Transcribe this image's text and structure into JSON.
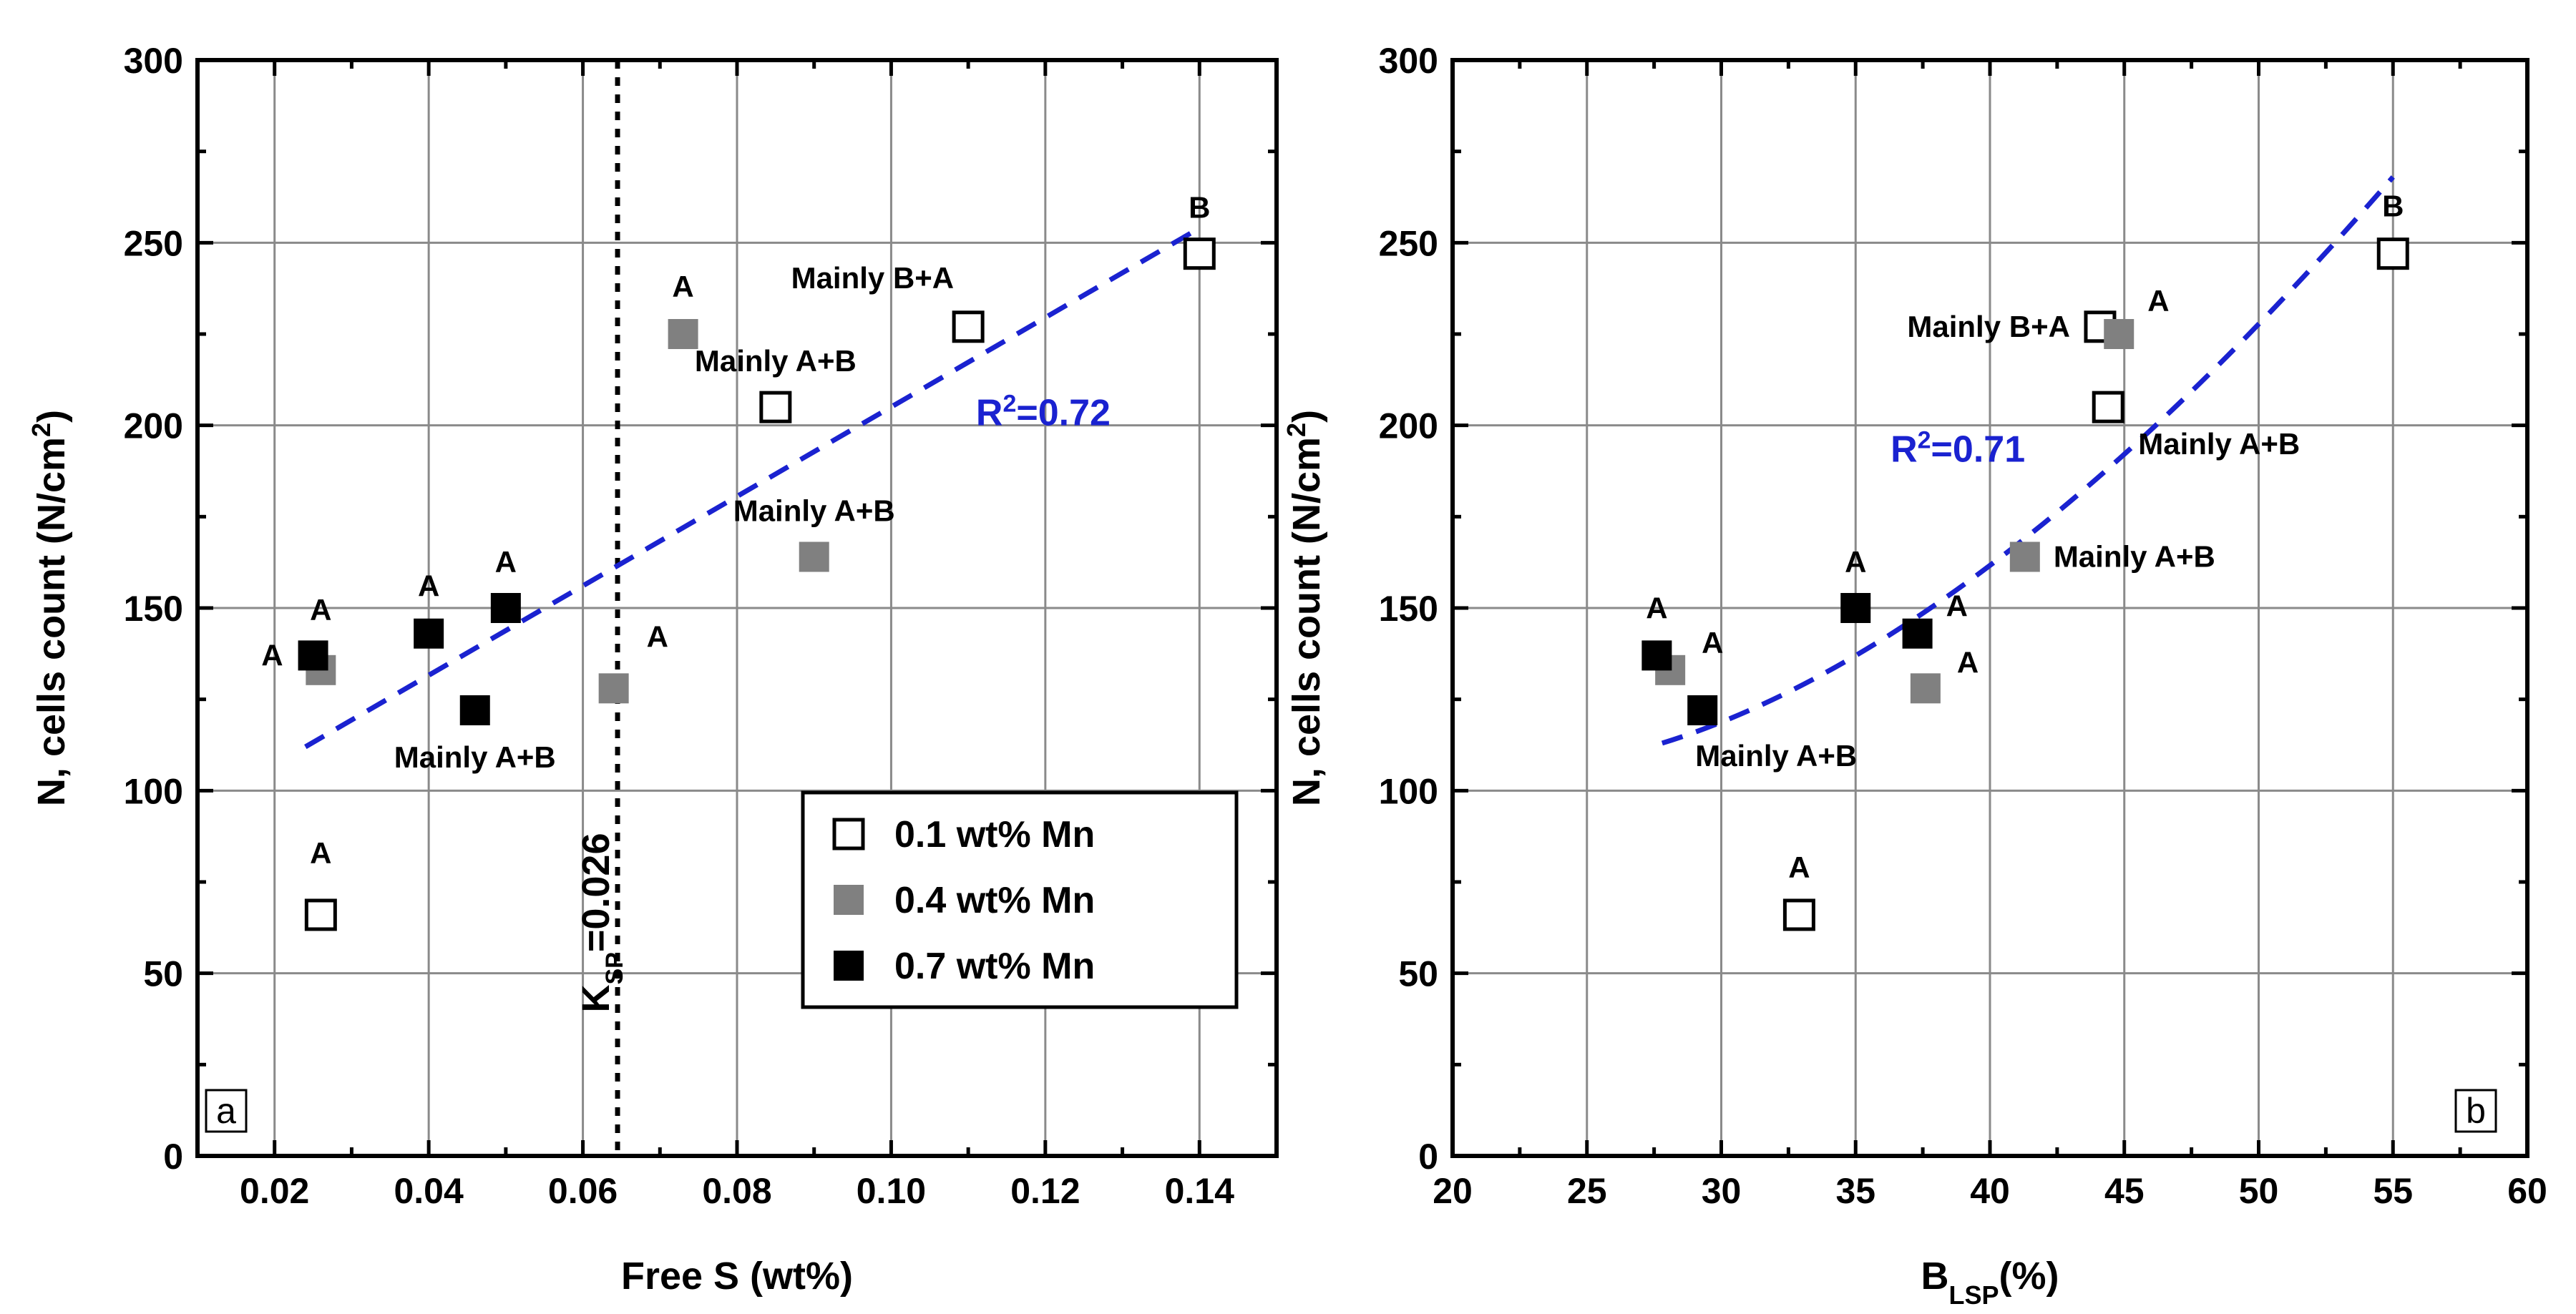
{
  "colors": {
    "open": "#ffffff",
    "gray": "#808080",
    "black": "#000000",
    "fit": "#1a22d0"
  },
  "legend": {
    "items": [
      {
        "label": "0.1 wt% Mn",
        "style": "open"
      },
      {
        "label": "0.4 wt% Mn",
        "style": "gray"
      },
      {
        "label": "0.7 wt% Mn",
        "style": "black"
      }
    ]
  },
  "chart_data": [
    {
      "type": "scatter",
      "panel": "a",
      "xlabel": "Free S (wt%)",
      "ylabel": "N, cells count (N/cm²)",
      "xlim": [
        0.01,
        0.15
      ],
      "ylim": [
        0,
        300
      ],
      "xticks": [
        0.02,
        0.04,
        0.06,
        0.08,
        0.1,
        0.12,
        0.14
      ],
      "xtick_labels": [
        "0.02",
        "0.04",
        "0.06",
        "0.08",
        "0.10",
        "0.12",
        "0.14"
      ],
      "yticks": [
        0,
        50,
        100,
        150,
        200,
        250,
        300
      ],
      "ytick_labels": [
        "0",
        "50",
        "100",
        "150",
        "200",
        "250",
        "300"
      ],
      "series": [
        {
          "name": "0.1 wt% Mn",
          "style": "open",
          "points": [
            {
              "x": 0.026,
              "y": 66,
              "label": "A"
            },
            {
              "x": 0.085,
              "y": 205,
              "label": "Mainly A+B"
            },
            {
              "x": 0.11,
              "y": 227,
              "label": "Mainly B+A"
            },
            {
              "x": 0.14,
              "y": 247,
              "label": "B"
            }
          ]
        },
        {
          "name": "0.4 wt% Mn",
          "style": "gray",
          "points": [
            {
              "x": 0.026,
              "y": 133,
              "label": "A"
            },
            {
              "x": 0.064,
              "y": 128,
              "label": "A"
            },
            {
              "x": 0.073,
              "y": 225,
              "label": "A"
            },
            {
              "x": 0.09,
              "y": 164,
              "label": "Mainly A+B"
            }
          ]
        },
        {
          "name": "0.7 wt% Mn",
          "style": "black",
          "points": [
            {
              "x": 0.025,
              "y": 137,
              "label": "A"
            },
            {
              "x": 0.04,
              "y": 143,
              "label": "A"
            },
            {
              "x": 0.046,
              "y": 122,
              "label": "Mainly A+B"
            },
            {
              "x": 0.05,
              "y": 150,
              "label": "A"
            }
          ]
        }
      ],
      "fit": {
        "type": "linear",
        "from": [
          0.024,
          112
        ],
        "to": [
          0.14,
          254
        ],
        "r2_label": "R²=0.72",
        "r2_anchor": [
          0.111,
          200
        ]
      },
      "vline": {
        "x": 0.0645,
        "label_main": "K",
        "label_sub": "SP",
        "label_value": "=0.026"
      },
      "panel_tag": "a"
    },
    {
      "type": "scatter",
      "panel": "b",
      "xlabel_main": "B",
      "xlabel_sub": "LSP",
      "xlabel_rest": "(%)",
      "ylabel": "N, cells count (N/cm²)",
      "xlim": [
        20,
        60
      ],
      "ylim": [
        0,
        300
      ],
      "xticks": [
        20,
        25,
        30,
        35,
        40,
        45,
        50,
        55,
        60
      ],
      "xtick_labels": [
        "20",
        "25",
        "30",
        "35",
        "40",
        "45",
        "50",
        "55",
        "60"
      ],
      "yticks": [
        0,
        50,
        100,
        150,
        200,
        250,
        300
      ],
      "ytick_labels": [
        "0",
        "50",
        "100",
        "150",
        "200",
        "250",
        "300"
      ],
      "series": [
        {
          "name": "0.1 wt% Mn",
          "style": "open",
          "points": [
            {
              "x": 32.9,
              "y": 66,
              "label": "A"
            },
            {
              "x": 44.1,
              "y": 227,
              "label": "Mainly B+A"
            },
            {
              "x": 44.4,
              "y": 205,
              "label": "Mainly A+B"
            },
            {
              "x": 55.0,
              "y": 247,
              "label": "B"
            }
          ]
        },
        {
          "name": "0.4 wt% Mn",
          "style": "gray",
          "points": [
            {
              "x": 28.1,
              "y": 133,
              "label": "A"
            },
            {
              "x": 37.6,
              "y": 128,
              "label": "A"
            },
            {
              "x": 41.3,
              "y": 164,
              "label": "Mainly A+B"
            },
            {
              "x": 44.8,
              "y": 225,
              "label": "A"
            }
          ]
        },
        {
          "name": "0.7 wt% Mn",
          "style": "black",
          "points": [
            {
              "x": 27.6,
              "y": 137,
              "label": "A"
            },
            {
              "x": 29.3,
              "y": 122,
              "label": "Mainly A+B"
            },
            {
              "x": 35.0,
              "y": 150,
              "label": "A"
            },
            {
              "x": 37.3,
              "y": 143,
              "label": "A"
            }
          ]
        }
      ],
      "fit": {
        "type": "quadratic",
        "from": [
          27.8,
          113
        ],
        "to": [
          55.0,
          268
        ],
        "r2_label": "R²=0.71",
        "r2_anchor": [
          36.3,
          190
        ]
      },
      "panel_tag": "b"
    }
  ]
}
